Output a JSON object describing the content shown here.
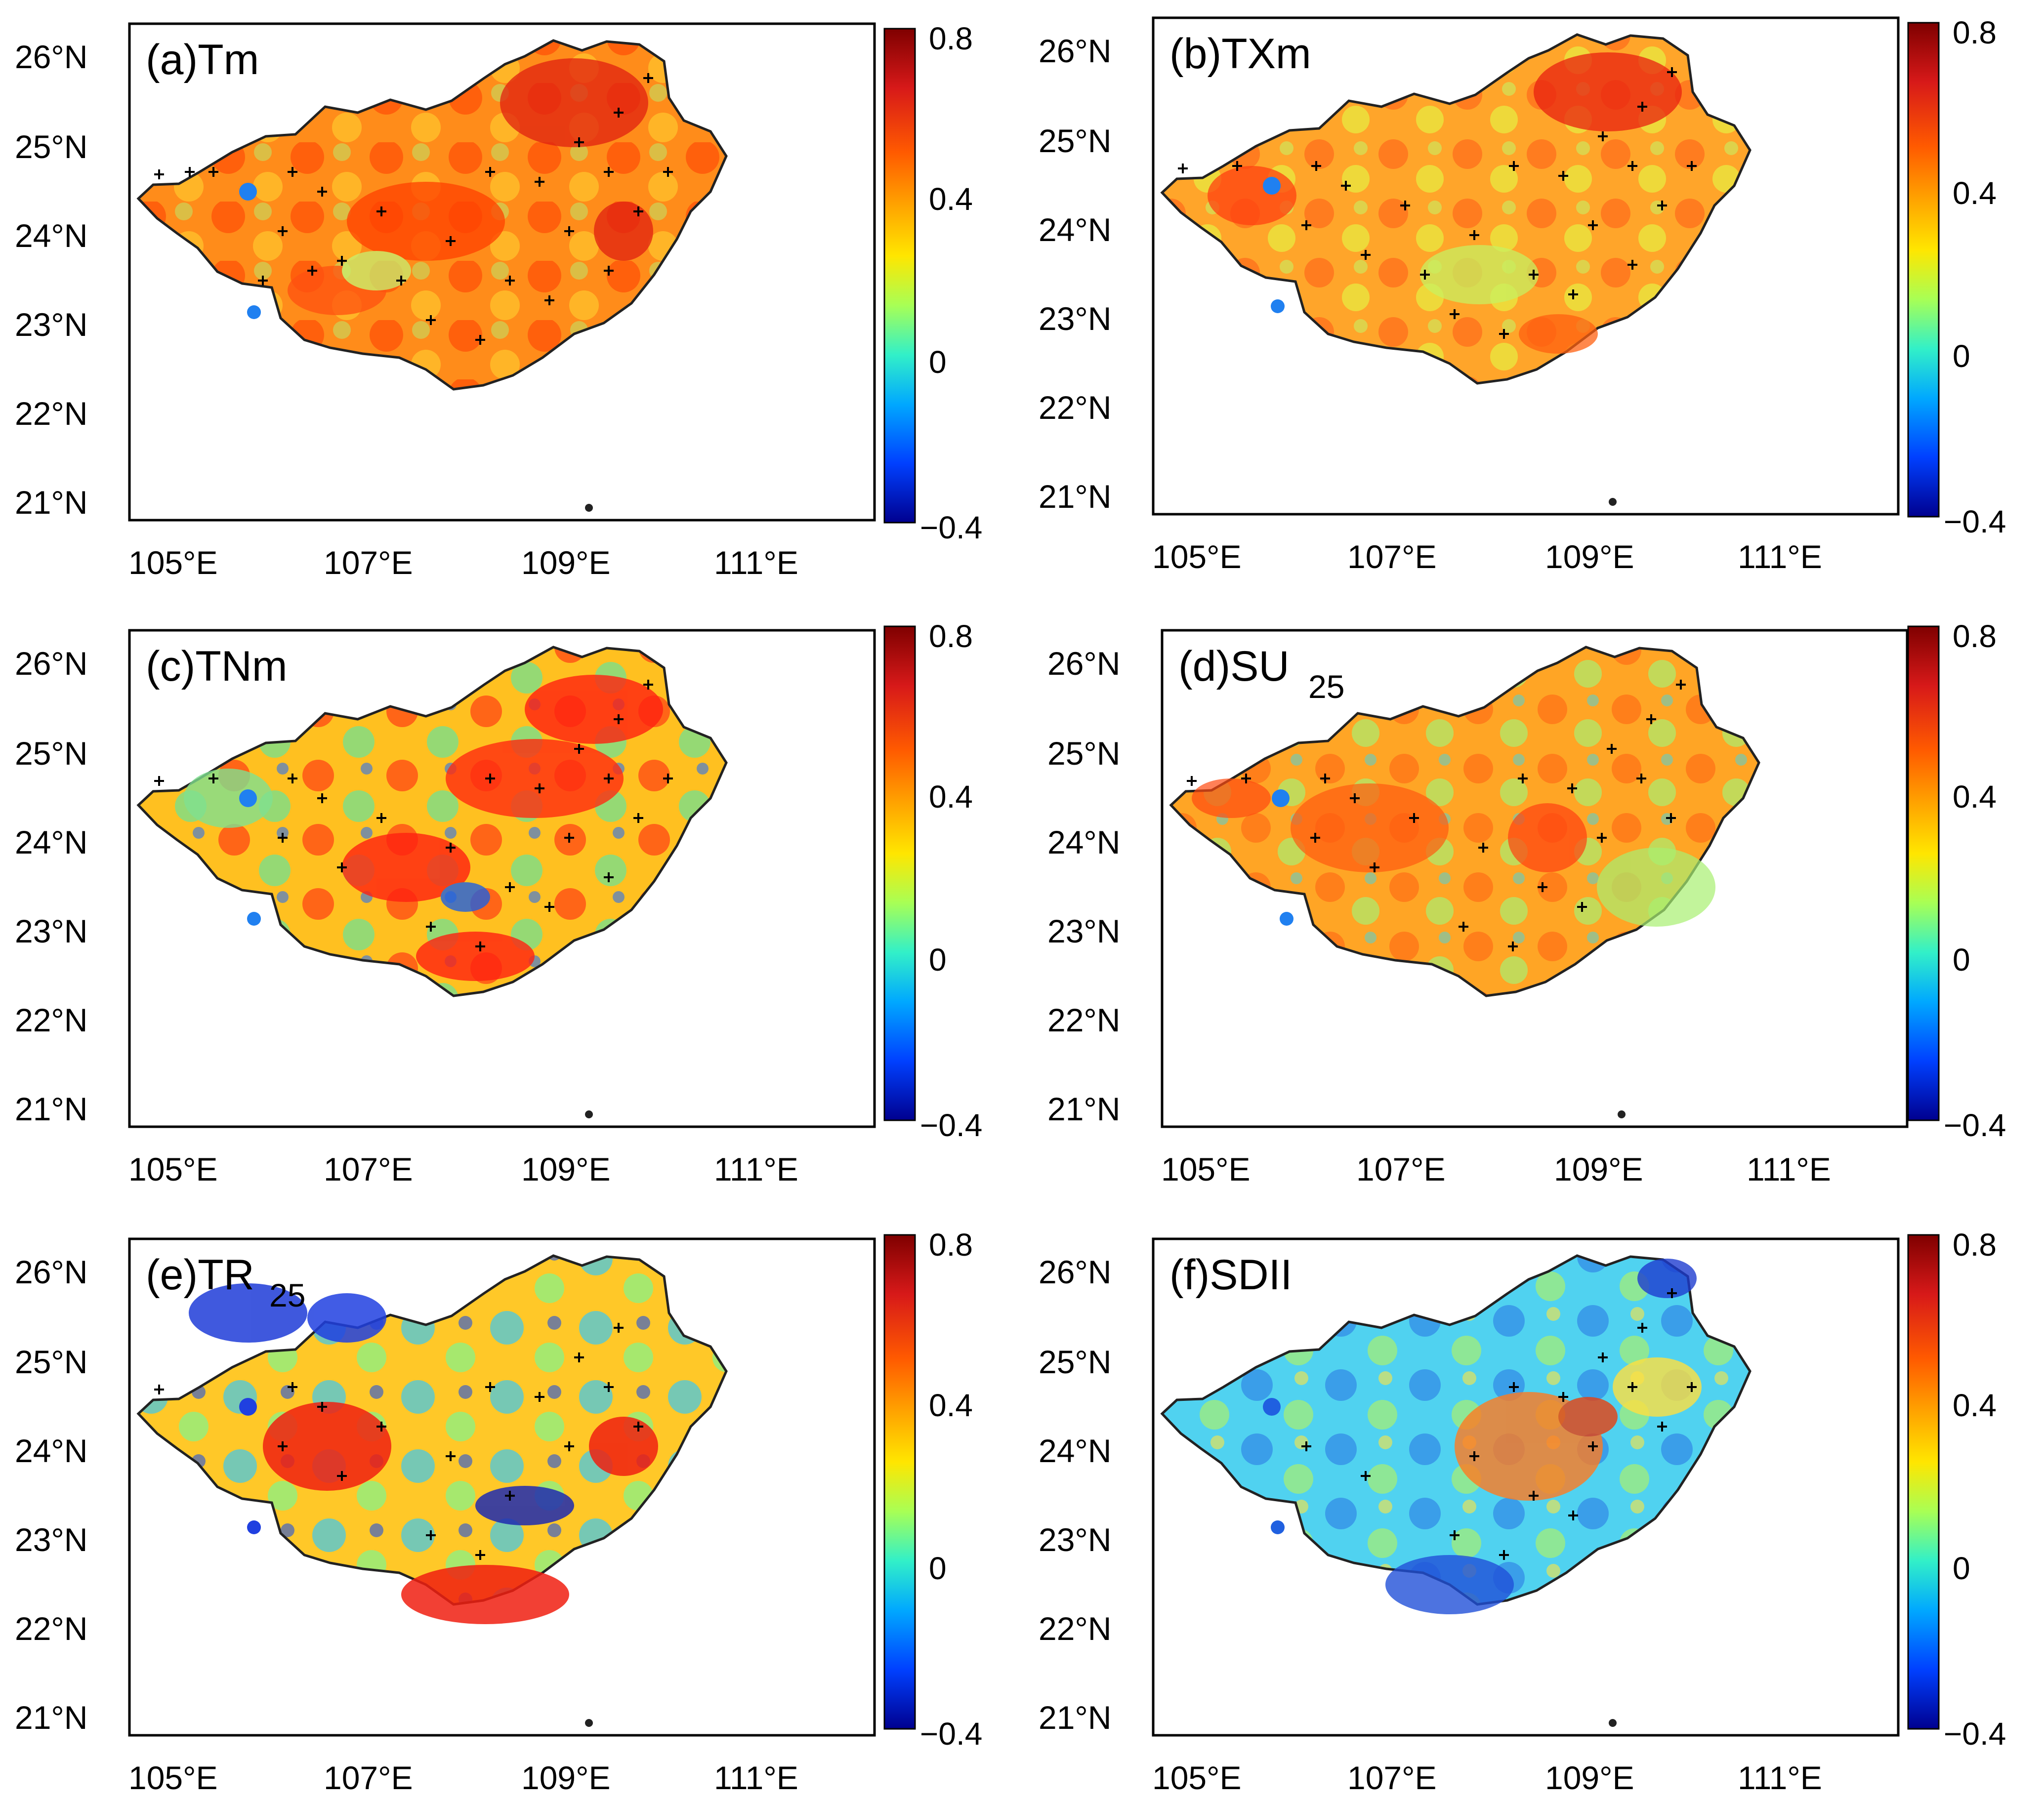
{
  "figure": {
    "panels": [
      {
        "id": "a",
        "label": "(a)Tm",
        "label_sub": ""
      },
      {
        "id": "b",
        "label": "(b)TXm",
        "label_sub": ""
      },
      {
        "id": "c",
        "label": "(c)TNm",
        "label_sub": ""
      },
      {
        "id": "d",
        "label": "(d)SU",
        "label_sub": "25"
      },
      {
        "id": "e",
        "label": "(e)TR",
        "label_sub": "25"
      },
      {
        "id": "f",
        "label": "(f)SDII",
        "label_sub": ""
      }
    ],
    "lat_ticks": [
      "26°N",
      "25°N",
      "24°N",
      "23°N",
      "22°N",
      "21°N"
    ],
    "lon_ticks": [
      "105°E",
      "107°E",
      "109°E",
      "111°E"
    ],
    "colorbar": {
      "ticks": [
        "0.8",
        "0.4",
        "0",
        "−0.4"
      ],
      "min": -0.4,
      "max": 0.8,
      "colors": [
        "#7f0000",
        "#d71919",
        "#ff5a00",
        "#ffa500",
        "#ffe600",
        "#a8ff55",
        "#32f0c8",
        "#00a8ff",
        "#0040ff",
        "#00008f"
      ]
    },
    "panel_colors": {
      "a": {
        "base": "#ff8c1a",
        "hi": "#ff3c00",
        "lo": "#b8f070"
      },
      "b": {
        "base": "#ffa52a",
        "hi": "#ff4a12",
        "lo": "#c8f060"
      },
      "c": {
        "base": "#ffc020",
        "hi": "#ff2810",
        "lo": "#7ae08a"
      },
      "d": {
        "base": "#ffa525",
        "hi": "#ff5a10",
        "lo": "#aaf070"
      },
      "e": {
        "base": "#ffc828",
        "hi": "#f01e0e",
        "lo": "#3cc8f0"
      },
      "f": {
        "base": "#50d2f0",
        "hi": "#ff7a20",
        "lo": "#2060e0"
      }
    }
  }
}
